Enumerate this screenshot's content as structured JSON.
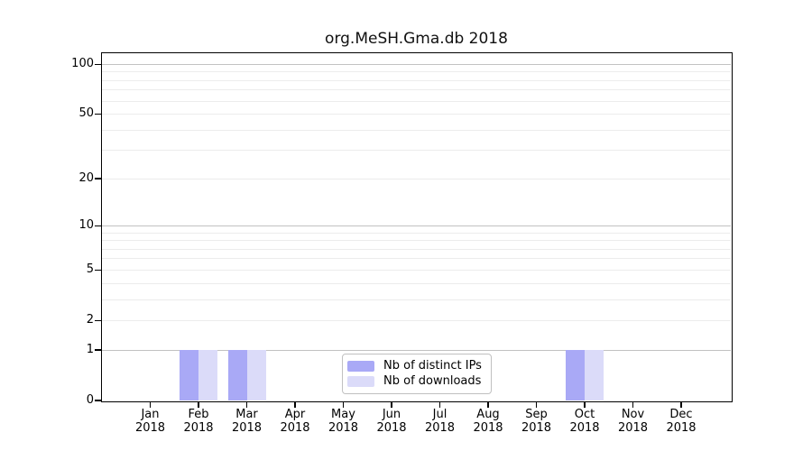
{
  "chart_data": {
    "type": "bar",
    "title": "org.MeSH.Gma.db 2018",
    "categories": [
      "Jan",
      "Feb",
      "Mar",
      "Apr",
      "May",
      "Jun",
      "Jul",
      "Aug",
      "Sep",
      "Oct",
      "Nov",
      "Dec"
    ],
    "x_year_label": "2018",
    "series": [
      {
        "name": "Nb of distinct IPs",
        "color": "#a9a9f6",
        "values": [
          0,
          1,
          1,
          0,
          0,
          0,
          0,
          0,
          0,
          1,
          0,
          0
        ]
      },
      {
        "name": "Nb of downloads",
        "color": "#dbdbf9",
        "values": [
          0,
          1,
          1,
          0,
          0,
          0,
          0,
          0,
          0,
          1,
          0,
          0
        ]
      }
    ],
    "yaxis": {
      "scale": "log1p",
      "ylim": [
        0,
        100
      ],
      "tick_values": [
        0,
        1,
        2,
        5,
        10,
        20,
        50,
        100
      ],
      "major_gridline_values": [
        1,
        10,
        100
      ],
      "minor_gridline_values": [
        2,
        3,
        4,
        5,
        6,
        7,
        8,
        9,
        20,
        30,
        40,
        50,
        60,
        70,
        80,
        90
      ]
    },
    "legend": {
      "position": "bottom-center",
      "entries": [
        "Nb of distinct IPs",
        "Nb of downloads"
      ]
    },
    "grid": "on"
  },
  "colors": {
    "bar_distinct_ips": "#a9a9f6",
    "bar_downloads": "#dbdbf9",
    "grid_major": "#c2c2c2",
    "grid_minor": "#ececec",
    "spine": "#000000",
    "legend_border": "#c0c0c0"
  }
}
